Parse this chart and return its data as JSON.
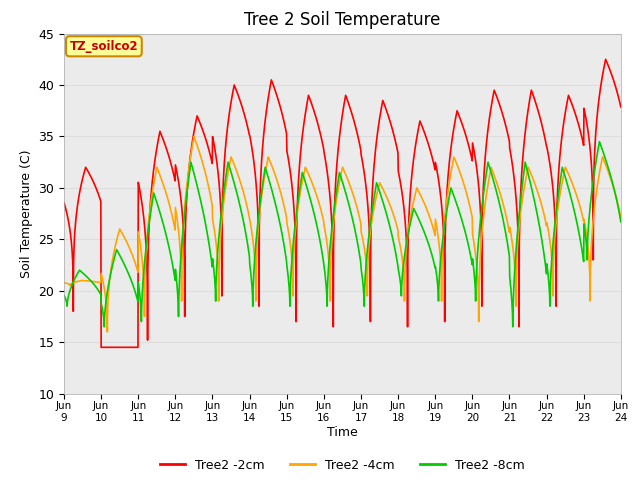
{
  "title": "Tree 2 Soil Temperature",
  "xlabel": "Time",
  "ylabel": "Soil Temperature (C)",
  "ylim": [
    10,
    45
  ],
  "yticks": [
    10,
    15,
    20,
    25,
    30,
    35,
    40,
    45
  ],
  "x_labels": [
    "Jun 9",
    "Jun 10",
    "Jun 11",
    "Jun 12",
    "Jun 13",
    "Jun 14",
    "Jun 15",
    "Jun 16",
    "Jun 17",
    "Jun 18",
    "Jun 19",
    "Jun 20",
    "Jun 21",
    "Jun 22",
    "Jun 23",
    "Jun 24"
  ],
  "legend_labels": [
    "Tree2 -2cm",
    "Tree2 -4cm",
    "Tree2 -8cm"
  ],
  "legend_colors": [
    "#ff0000",
    "#ffa500",
    "#00cc00"
  ],
  "annotation_text": "TZ_soilco2",
  "annotation_bg": "#ffff99",
  "annotation_border": "#cc8800",
  "grid_color": "#dddddd",
  "plot_bg": "#ebebeb",
  "line_width": 1.2,
  "day_peaks_2cm": [
    32,
    14.5,
    35.5,
    37,
    40,
    40.5,
    39,
    39,
    38.5,
    36.5,
    37.5,
    39.5,
    39.5,
    39,
    42.5
  ],
  "day_troughs_2cm": [
    18,
    14.5,
    15.2,
    17.5,
    19.5,
    18.5,
    17,
    16.5,
    17,
    16.5,
    17,
    18.5,
    16.5,
    18.5,
    23
  ],
  "day_peaks_4cm": [
    21,
    26,
    32,
    35,
    33,
    33,
    32,
    32,
    30.5,
    30,
    33,
    32,
    32,
    32,
    33
  ],
  "day_troughs_4cm": [
    20.5,
    16,
    17.5,
    19,
    19,
    19,
    19.5,
    19,
    19.5,
    19,
    19,
    17,
    18.5,
    19.5,
    19
  ],
  "day_peaks_8cm": [
    22,
    24,
    29.5,
    32.5,
    32.5,
    32,
    31.5,
    31.5,
    30.5,
    28,
    30,
    32.5,
    32.5,
    32,
    34.5
  ],
  "day_troughs_8cm": [
    18.5,
    16.5,
    17,
    17.5,
    19,
    18.5,
    18.5,
    18.5,
    18.5,
    19.5,
    19,
    19,
    16.5,
    18.5,
    23
  ],
  "peak_hour": 14,
  "trough_hour": 6,
  "sharpness": 3.5
}
